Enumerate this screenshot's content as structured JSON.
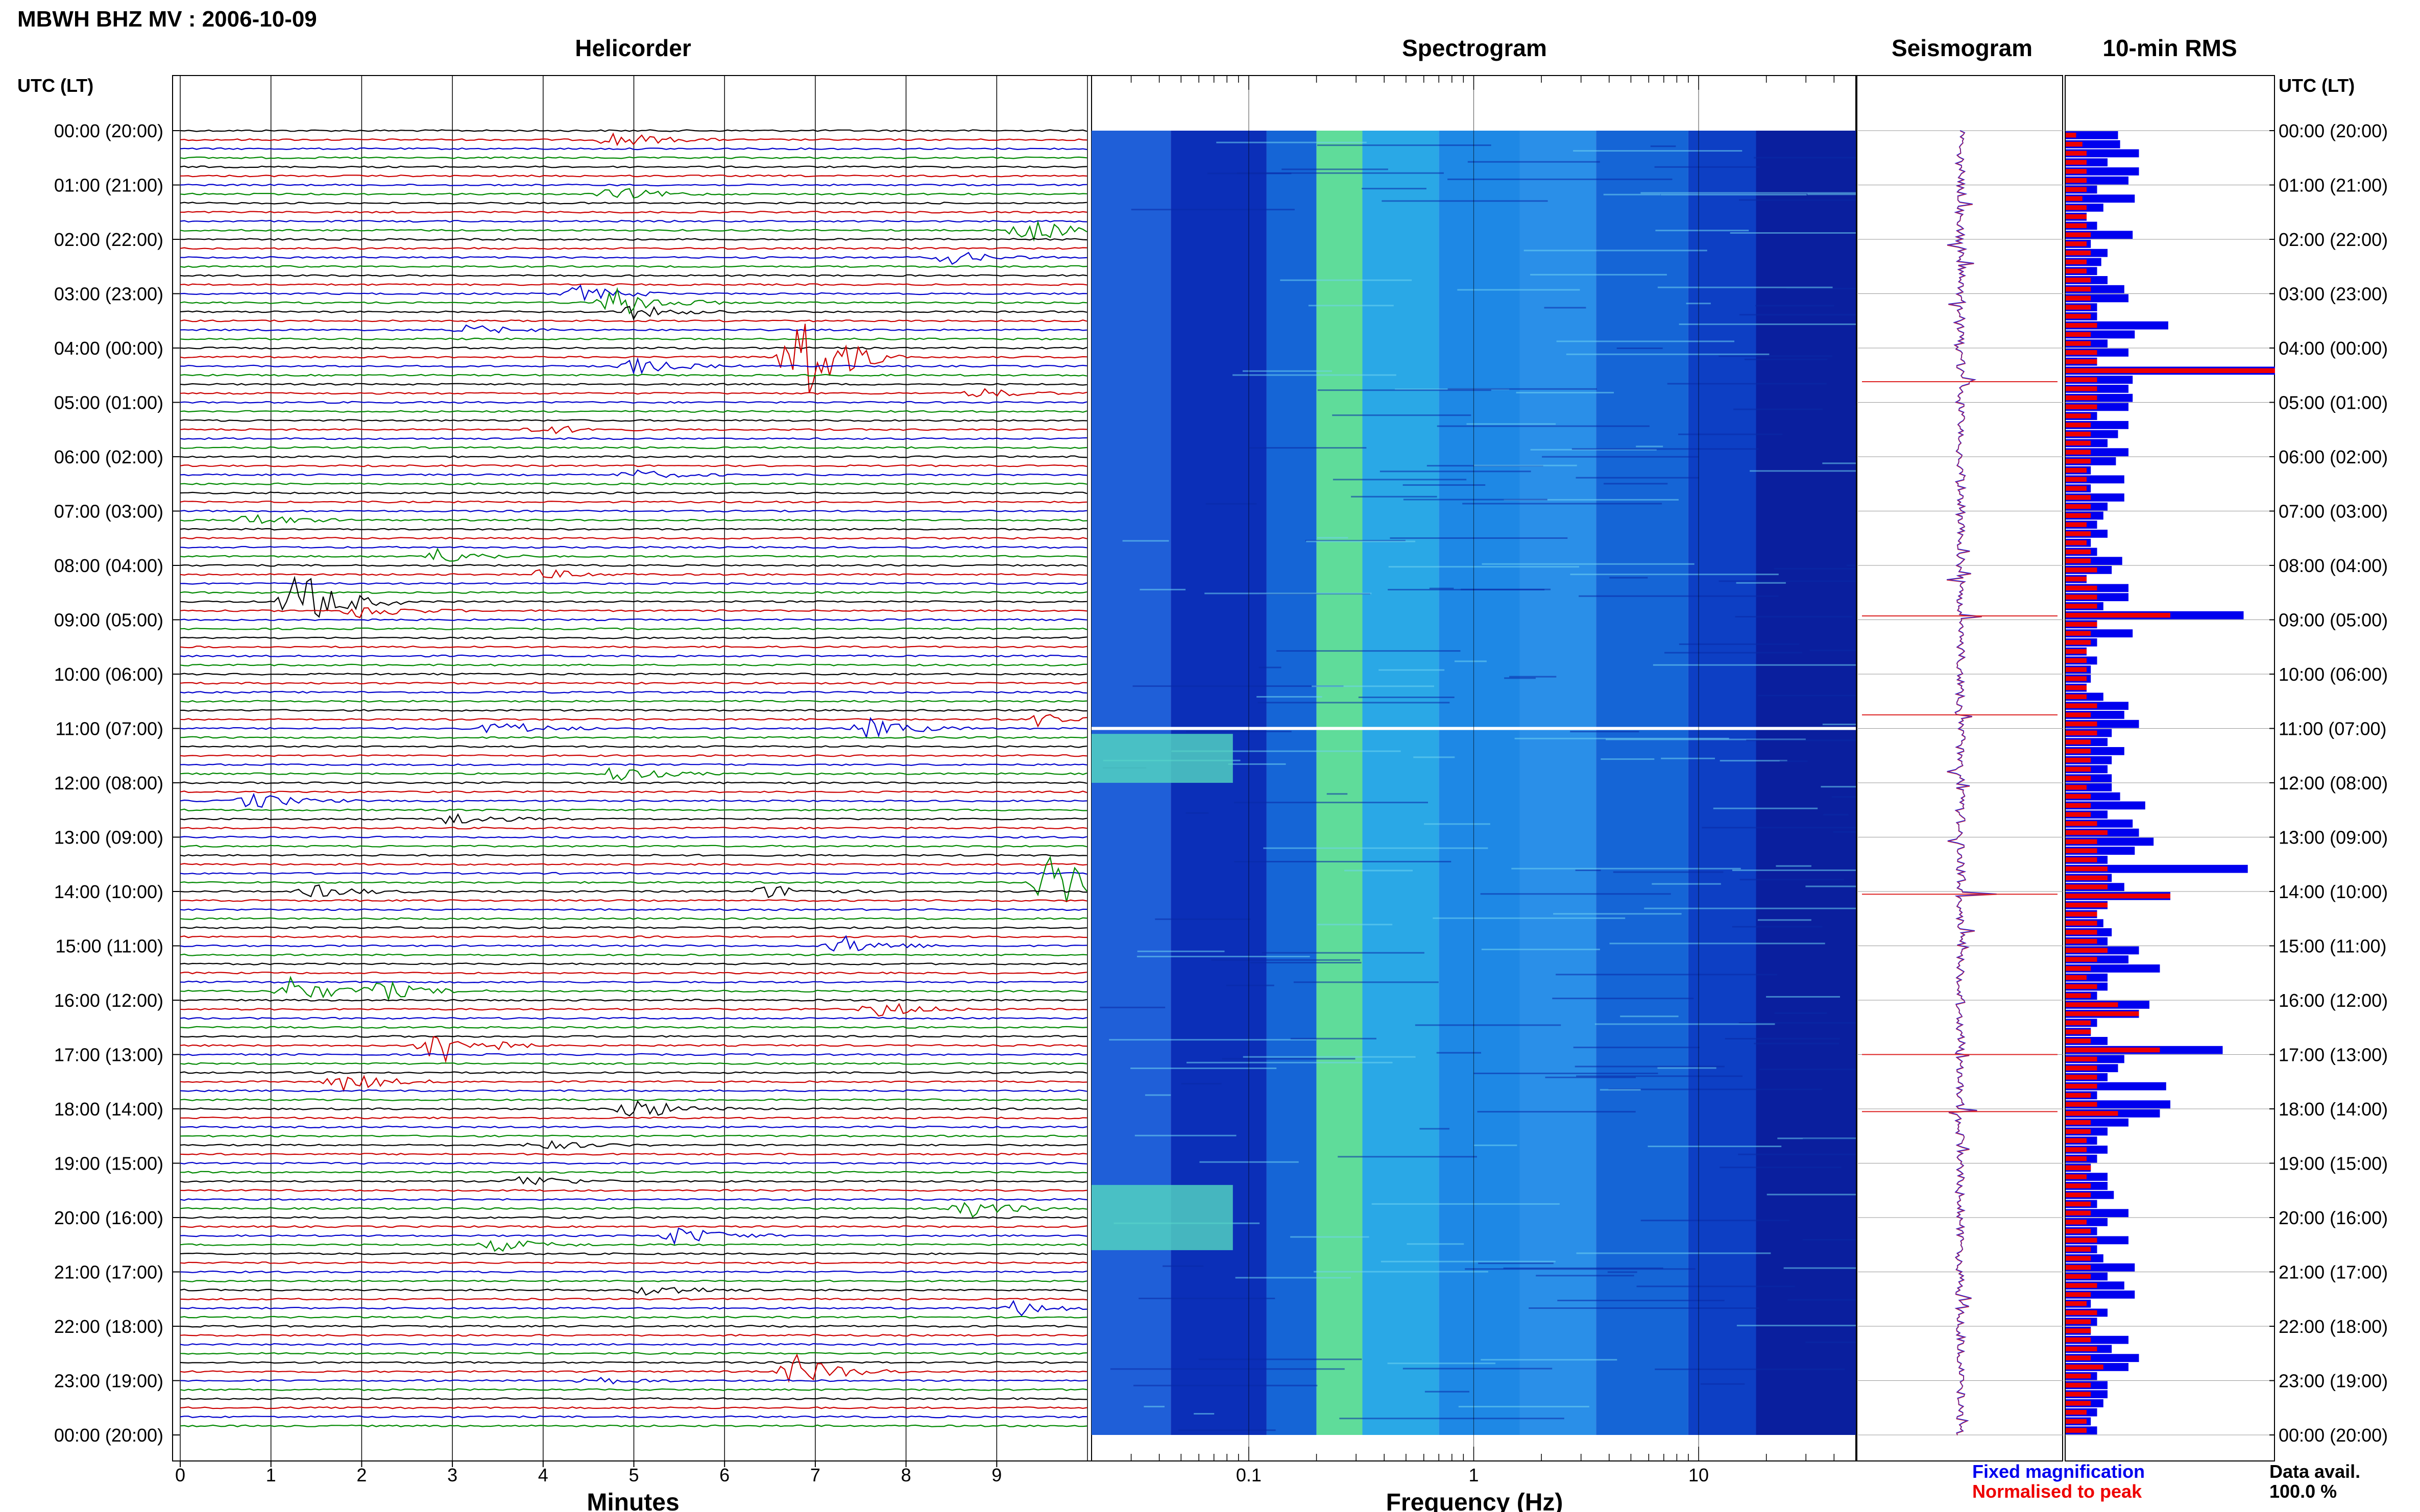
{
  "header": {
    "title": "MBWH BHZ MV : 2006-10-09"
  },
  "panels": {
    "helicorder": "Helicorder",
    "spectrogram": "Spectrogram",
    "seismogram": "Seismogram",
    "rms": "10-min RMS"
  },
  "time_axis": {
    "title_left": "UTC (LT)",
    "title_right": "UTC (LT)",
    "labels": [
      "00:00 (20:00)",
      "01:00 (21:00)",
      "02:00 (22:00)",
      "03:00 (23:00)",
      "04:00 (00:00)",
      "05:00 (01:00)",
      "06:00 (02:00)",
      "07:00 (03:00)",
      "08:00 (04:00)",
      "09:00 (05:00)",
      "10:00 (06:00)",
      "11:00 (07:00)",
      "12:00 (08:00)",
      "13:00 (09:00)",
      "14:00 (10:00)",
      "15:00 (11:00)",
      "16:00 (12:00)",
      "17:00 (13:00)",
      "18:00 (14:00)",
      "19:00 (15:00)",
      "20:00 (16:00)",
      "21:00 (17:00)",
      "22:00 (18:00)",
      "23:00 (19:00)",
      "00:00 (20:00)"
    ]
  },
  "footer": {
    "minutes_label": "Minutes",
    "frequency_label": "Frequency (Hz)",
    "legend_fixed": "Fixed magnification",
    "legend_normalised": "Normalised to peak",
    "data_avail_label": "Data avail.",
    "data_avail_value": "100.0 %"
  },
  "colors": {
    "fixed": "#0000ee",
    "normalised": "#ee0000",
    "trace_cycle": [
      "#000000",
      "#cc0000",
      "#0000cc",
      "#008800"
    ]
  },
  "chart_data": [
    {
      "type": "line",
      "name": "helicorder",
      "xlabel": "Minutes",
      "x_ticks": [
        0,
        1,
        2,
        3,
        4,
        5,
        6,
        7,
        8,
        9
      ],
      "xlim": [
        0,
        10
      ],
      "row_minutes": 10,
      "rows": 144,
      "events": [
        {
          "row": 1,
          "minute": 4.8,
          "amp": 0.5
        },
        {
          "row": 7,
          "minute": 4.8,
          "amp": 0.4
        },
        {
          "row": 11,
          "minute": 9.3,
          "amp": 0.8
        },
        {
          "row": 14,
          "minute": 8.5,
          "amp": 0.4
        },
        {
          "row": 18,
          "minute": 4.4,
          "amp": 0.5
        },
        {
          "row": 19,
          "minute": 4.8,
          "amp": 1.0
        },
        {
          "row": 20,
          "minute": 5.0,
          "amp": 0.4
        },
        {
          "row": 22,
          "minute": 3.2,
          "amp": 0.3
        },
        {
          "row": 25,
          "minute": 6.8,
          "amp": 3.5
        },
        {
          "row": 26,
          "minute": 5.0,
          "amp": 0.5
        },
        {
          "row": 29,
          "minute": 8.8,
          "amp": 0.3
        },
        {
          "row": 33,
          "minute": 4.0,
          "amp": 0.3
        },
        {
          "row": 38,
          "minute": 5.0,
          "amp": 0.3
        },
        {
          "row": 43,
          "minute": 0.8,
          "amp": 0.4
        },
        {
          "row": 47,
          "minute": 2.8,
          "amp": 0.5
        },
        {
          "row": 49,
          "minute": 4.0,
          "amp": 0.3
        },
        {
          "row": 52,
          "minute": 1.3,
          "amp": 2.0
        },
        {
          "row": 53,
          "minute": 2.0,
          "amp": 0.5
        },
        {
          "row": 65,
          "minute": 9.5,
          "amp": 0.5
        },
        {
          "row": 66,
          "minute": 3.5,
          "amp": 0.5
        },
        {
          "row": 66,
          "minute": 7.6,
          "amp": 0.6
        },
        {
          "row": 71,
          "minute": 4.8,
          "amp": 0.5
        },
        {
          "row": 74,
          "minute": 0.8,
          "amp": 0.5
        },
        {
          "row": 76,
          "minute": 3.0,
          "amp": 0.4
        },
        {
          "row": 83,
          "minute": 9.6,
          "amp": 1.8
        },
        {
          "row": 84,
          "minute": 1.5,
          "amp": 0.4
        },
        {
          "row": 84,
          "minute": 6.5,
          "amp": 0.4
        },
        {
          "row": 90,
          "minute": 7.3,
          "amp": 0.6
        },
        {
          "row": 95,
          "minute": 1.2,
          "amp": 0.9
        },
        {
          "row": 95,
          "minute": 2.2,
          "amp": 0.6
        },
        {
          "row": 97,
          "minute": 7.7,
          "amp": 0.5
        },
        {
          "row": 101,
          "minute": 2.8,
          "amp": 1.4
        },
        {
          "row": 105,
          "minute": 1.8,
          "amp": 0.6
        },
        {
          "row": 108,
          "minute": 5.0,
          "amp": 0.7
        },
        {
          "row": 112,
          "minute": 4.0,
          "amp": 0.3
        },
        {
          "row": 116,
          "minute": 3.8,
          "amp": 0.4
        },
        {
          "row": 119,
          "minute": 8.7,
          "amp": 0.6
        },
        {
          "row": 122,
          "minute": 5.5,
          "amp": 0.6
        },
        {
          "row": 123,
          "minute": 3.5,
          "amp": 0.4
        },
        {
          "row": 128,
          "minute": 5.2,
          "amp": 0.4
        },
        {
          "row": 130,
          "minute": 9.2,
          "amp": 0.5
        },
        {
          "row": 137,
          "minute": 6.8,
          "amp": 1.0
        },
        {
          "row": 138,
          "minute": 4.5,
          "amp": 0.3
        }
      ]
    },
    {
      "type": "heatmap",
      "name": "spectrogram",
      "xlabel": "Frequency (Hz)",
      "x_scale": "log",
      "xlim": [
        0.02,
        50
      ],
      "x_tick_labels": [
        "0.1",
        "1",
        "10"
      ],
      "x_tick_values": [
        0.1,
        1,
        10
      ],
      "gap_hour": 11.0,
      "low_freq_bright_hours": [
        [
          11.1,
          12.0
        ],
        [
          19.4,
          20.6
        ]
      ]
    },
    {
      "type": "line",
      "name": "seismogram",
      "spikes_hours": [
        4.62,
        8.93,
        10.75,
        14.05,
        17.0,
        18.05
      ]
    },
    {
      "type": "bar",
      "name": "10-min RMS",
      "series": [
        {
          "name": "Fixed magnification",
          "values": [
            0.25,
            0.05,
            0.35,
            0.2,
            0.35,
            0.3,
            0.15,
            0.12,
            0.18,
            0.1,
            0.15,
            0.22,
            0.12,
            0.35,
            0.15,
            0.15,
            0.2,
            0.22,
            0.3,
            0.15,
            0.15,
            0.2,
            0.12,
            0.2,
            0.3,
            0.15,
            0.3,
            0.25,
            0.3,
            0.2,
            0.3,
            0.15,
            0.3,
            0.25,
            0.2,
            0.3,
            0.15,
            0.12,
            0.18,
            0.12,
            0.15,
            0.2,
            0.18,
            0.15,
            0.2,
            0.12,
            0.15,
            0.2,
            0.22,
            0.1,
            0.3,
            0.3,
            0.18,
            0.15,
            0.15,
            0.2,
            0.15,
            0.1,
            0.15,
            0.12,
            0.12,
            0.1,
            0.18,
            0.3,
            0.28,
            0.35,
            0.22,
            0.2,
            0.18,
            0.22,
            0.2,
            0.22,
            0.22,
            0.2,
            0.15,
            0.2,
            0.2,
            0.3,
            0.25,
            0.3,
            0.2,
            0.25,
            0.22,
            0.28,
            0.3,
            0.2,
            0.15,
            0.18,
            0.22,
            0.2,
            0.25,
            0.3,
            0.15,
            0.12,
            0.2,
            0.15,
            0.3,
            0.25,
            0.15,
            0.12,
            0.2,
            0.22,
            0.3,
            0.25,
            0.2,
            0.22,
            0.15,
            0.12,
            0.2,
            0.3,
            0.2,
            0.15,
            0.2,
            0.15,
            0.12,
            0.15,
            0.2,
            0.15,
            0.15,
            0.2,
            0.12,
            0.15,
            0.22,
            0.15,
            0.18,
            0.12,
            0.2,
            0.25,
            0.15,
            0.12,
            0.2,
            0.15,
            0.12,
            0.18,
            0.22,
            0.2,
            0.3,
            0.15,
            0.15,
            0.2,
            0.18,
            0.15,
            0.12,
            0.15
          ],
          "overrides": {
            "1": 0.26,
            "7": 0.33,
            "11": 0.32,
            "13": 0.2,
            "14": 0.17,
            "17": 0.28,
            "21": 0.49,
            "22": 0.33,
            "26": 0.98,
            "27": 0.32,
            "29": 0.32,
            "36": 0.24,
            "38": 0.28,
            "40": 0.28,
            "47": 0.27,
            "53": 0.85,
            "55": 0.32,
            "63": 0.3,
            "64": 0.28,
            "68": 0.28,
            "73": 0.26,
            "74": 0.38,
            "76": 0.32,
            "77": 0.35,
            "78": 0.42,
            "79": 0.33,
            "81": 0.87,
            "84": 0.38,
            "90": 0.35,
            "92": 0.45,
            "93": 0.2,
            "96": 0.4,
            "97": 0.35,
            "101": 0.75,
            "102": 0.28,
            "105": 0.48,
            "107": 0.5,
            "108": 0.45,
            "115": 0.2,
            "117": 0.23,
            "119": 0.3,
            "120": 0.2,
            "122": 0.3,
            "125": 0.33,
            "127": 0.28,
            "128": 0.33,
            "133": 0.3,
            "135": 0.35,
            "136": 0.3,
            "138": 0.2
          }
        },
        {
          "name": "Normalised to peak",
          "values": [
            0.05,
            0.08,
            0.1,
            0.1,
            0.1,
            0.1,
            0.1,
            0.08,
            0.1,
            0.1,
            0.1,
            0.12,
            0.1,
            0.12,
            0.1,
            0.1,
            0.12,
            0.12,
            0.12,
            0.12,
            0.12,
            0.15,
            0.12,
            0.12,
            0.15,
            0.15,
            1.0,
            0.15,
            0.15,
            0.15,
            0.15,
            0.12,
            0.12,
            0.12,
            0.12,
            0.12,
            0.12,
            0.1,
            0.1,
            0.1,
            0.12,
            0.12,
            0.12,
            0.1,
            0.12,
            0.1,
            0.12,
            0.12,
            0.15,
            0.1,
            0.15,
            0.15,
            0.15,
            0.5,
            0.15,
            0.12,
            0.12,
            0.1,
            0.1,
            0.1,
            0.1,
            0.1,
            0.1,
            0.15,
            0.12,
            0.15,
            0.15,
            0.12,
            0.12,
            0.12,
            0.12,
            0.12,
            0.1,
            0.12,
            0.12,
            0.12,
            0.15,
            0.2,
            0.15,
            0.15,
            0.15,
            0.2,
            0.2,
            0.2,
            0.5,
            0.2,
            0.15,
            0.15,
            0.15,
            0.15,
            0.2,
            0.15,
            0.12,
            0.1,
            0.15,
            0.12,
            0.25,
            0.35,
            0.12,
            0.12,
            0.12,
            0.45,
            0.15,
            0.15,
            0.15,
            0.15,
            0.12,
            0.15,
            0.25,
            0.12,
            0.12,
            0.1,
            0.1,
            0.1,
            0.12,
            0.1,
            0.12,
            0.12,
            0.12,
            0.12,
            0.1,
            0.12,
            0.15,
            0.12,
            0.12,
            0.12,
            0.12,
            0.15,
            0.12,
            0.1,
            0.15,
            0.12,
            0.12,
            0.12,
            0.15,
            0.12,
            0.18,
            0.12,
            0.12,
            0.12,
            0.12,
            0.1,
            0.1,
            0.1
          ]
        }
      ]
    }
  ]
}
